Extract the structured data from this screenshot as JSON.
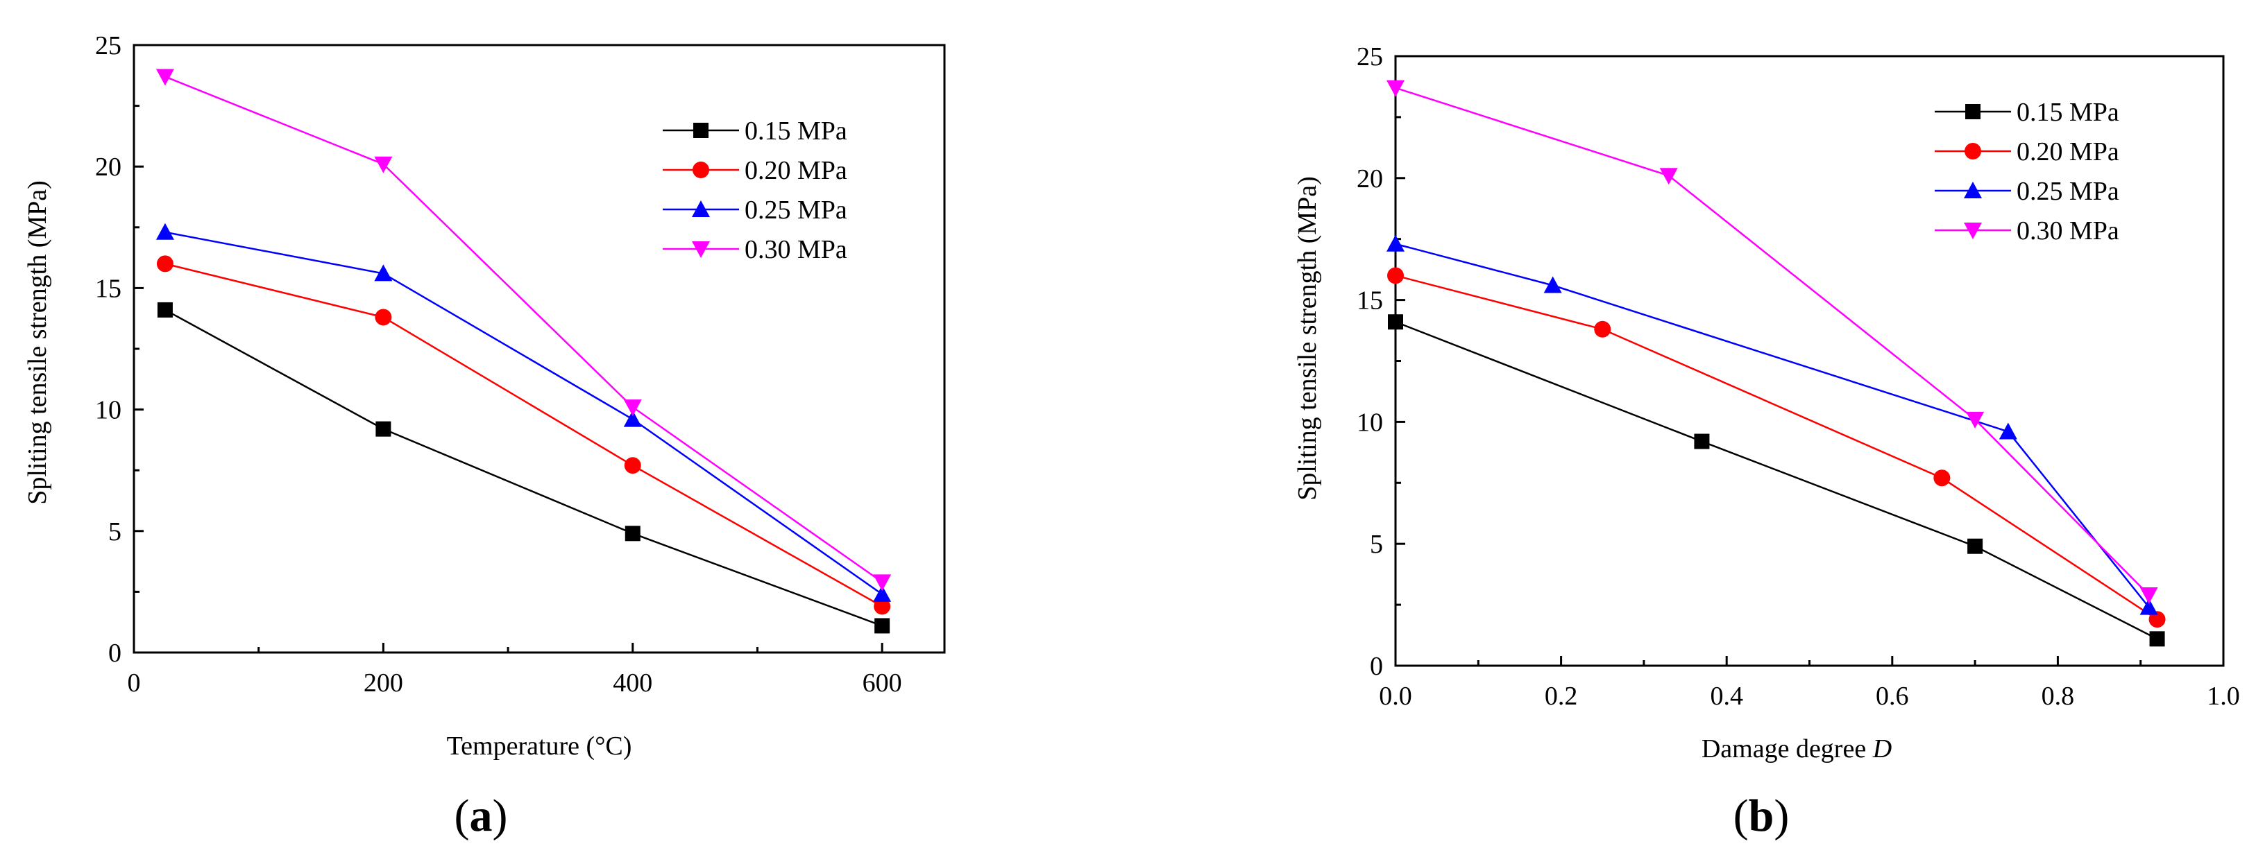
{
  "chart_data": [
    {
      "id": "a",
      "panel_label": "a",
      "type": "line",
      "xlabel": "Temperature (°C)",
      "ylabel": "Spliting tensile strength (MPa)",
      "xlim": [
        0,
        650
      ],
      "ylim": [
        0,
        25
      ],
      "xticks": [
        0,
        200,
        400,
        600
      ],
      "xtick_labels": [
        "0",
        "200",
        "400",
        "600"
      ],
      "yticks": [
        0,
        5,
        10,
        15,
        20,
        25
      ],
      "ytick_labels": [
        "0",
        "5",
        "10",
        "15",
        "20",
        "25"
      ],
      "legend_position": "top-right",
      "series": [
        {
          "name": "0.15 MPa",
          "color": "#000000",
          "marker": "square",
          "x": [
            25,
            200,
            400,
            600
          ],
          "y": [
            14.1,
            9.2,
            4.9,
            1.1
          ]
        },
        {
          "name": "0.20 MPa",
          "color": "#ff0000",
          "marker": "circle",
          "x": [
            25,
            200,
            400,
            600
          ],
          "y": [
            16.0,
            13.8,
            7.7,
            1.9
          ]
        },
        {
          "name": "0.25 MPa",
          "color": "#0000ff",
          "marker": "triangle-up",
          "x": [
            25,
            200,
            400,
            600
          ],
          "y": [
            17.3,
            15.6,
            9.6,
            2.4
          ]
        },
        {
          "name": "0.30 MPa",
          "color": "#ff00ff",
          "marker": "triangle-down",
          "x": [
            25,
            200,
            400,
            600
          ],
          "y": [
            23.7,
            20.1,
            10.1,
            2.9
          ]
        }
      ]
    },
    {
      "id": "b",
      "panel_label": "b",
      "type": "line",
      "xlabel": "Damage degree ",
      "xlabel_italic": "D",
      "ylabel": "Spliting tensile strength (MPa)",
      "xlim": [
        0,
        1.0
      ],
      "ylim": [
        0,
        25
      ],
      "xticks": [
        0,
        0.2,
        0.4,
        0.6,
        0.8,
        1.0
      ],
      "xtick_labels": [
        "0.0",
        "0.2",
        "0.4",
        "0.6",
        "0.8",
        "1.0"
      ],
      "yticks": [
        0,
        5,
        10,
        15,
        20,
        25
      ],
      "ytick_labels": [
        "0",
        "5",
        "10",
        "15",
        "20",
        "25"
      ],
      "legend_position": "top-right",
      "series": [
        {
          "name": "0.15 MPa",
          "color": "#000000",
          "marker": "square",
          "x": [
            0.0,
            0.37,
            0.7,
            0.92
          ],
          "y": [
            14.1,
            9.2,
            4.9,
            1.1
          ]
        },
        {
          "name": "0.20 MPa",
          "color": "#ff0000",
          "marker": "circle",
          "x": [
            0.0,
            0.25,
            0.66,
            0.92
          ],
          "y": [
            16.0,
            13.8,
            7.7,
            1.9
          ]
        },
        {
          "name": "0.25 MPa",
          "color": "#0000ff",
          "marker": "triangle-up",
          "x": [
            0.0,
            0.19,
            0.74,
            0.91
          ],
          "y": [
            17.3,
            15.6,
            9.6,
            2.4
          ]
        },
        {
          "name": "0.30 MPa",
          "color": "#ff00ff",
          "marker": "triangle-down",
          "x": [
            0.0,
            0.33,
            0.7,
            0.91
          ],
          "y": [
            23.7,
            20.1,
            10.1,
            2.9
          ]
        }
      ]
    }
  ]
}
